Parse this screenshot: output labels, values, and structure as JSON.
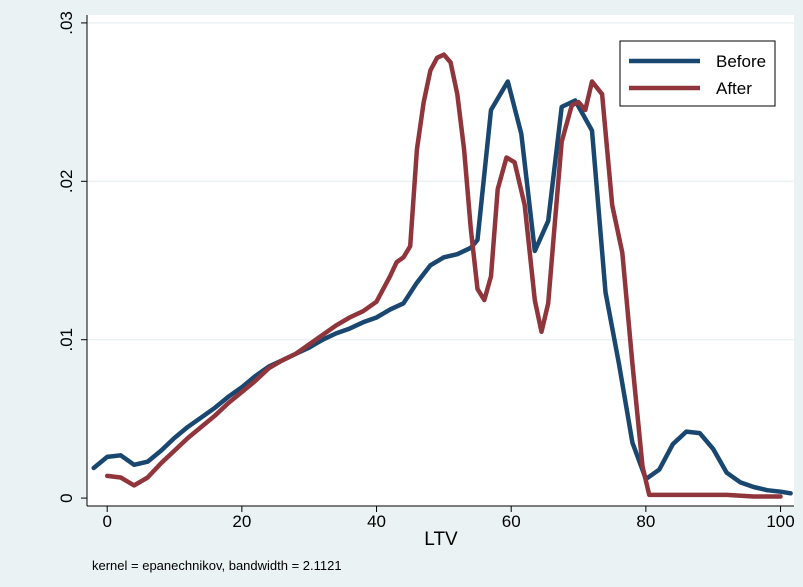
{
  "chart_data": {
    "type": "line",
    "title": "",
    "xlabel": "LTV",
    "ylabel": "",
    "xlim": [
      -3,
      102
    ],
    "ylim": [
      -0.0005,
      0.0305
    ],
    "x_ticks": [
      0,
      20,
      40,
      60,
      80,
      100
    ],
    "y_ticks": [
      0,
      0.01,
      0.02,
      0.03
    ],
    "y_tick_labels": [
      "0",
      ".01",
      ".02",
      ".03"
    ],
    "grid": "horizontal",
    "legend_position": "top-right",
    "note": "kernel = epanechnikov, bandwidth = 2.1121",
    "series": [
      {
        "name": "Before",
        "color": "#1a476f",
        "points": [
          [
            -2,
            0.0019
          ],
          [
            0,
            0.0026
          ],
          [
            2,
            0.0027
          ],
          [
            4,
            0.0021
          ],
          [
            6,
            0.0023
          ],
          [
            8,
            0.003
          ],
          [
            10,
            0.0038
          ],
          [
            12,
            0.0045
          ],
          [
            14,
            0.0051
          ],
          [
            16,
            0.0057
          ],
          [
            18,
            0.0064
          ],
          [
            20,
            0.007
          ],
          [
            22,
            0.0077
          ],
          [
            24,
            0.0083
          ],
          [
            26,
            0.0087
          ],
          [
            28,
            0.0091
          ],
          [
            30,
            0.0095
          ],
          [
            32,
            0.01
          ],
          [
            34,
            0.0104
          ],
          [
            36,
            0.0107
          ],
          [
            38,
            0.0111
          ],
          [
            40,
            0.0114
          ],
          [
            42,
            0.0119
          ],
          [
            44,
            0.0123
          ],
          [
            46,
            0.0136
          ],
          [
            48,
            0.0147
          ],
          [
            50,
            0.0152
          ],
          [
            52,
            0.0154
          ],
          [
            54,
            0.0158
          ],
          [
            55,
            0.0163
          ],
          [
            57,
            0.0245
          ],
          [
            59.5,
            0.0263
          ],
          [
            61.5,
            0.023
          ],
          [
            63.5,
            0.0156
          ],
          [
            65.5,
            0.0175
          ],
          [
            67.5,
            0.0247
          ],
          [
            69.5,
            0.0251
          ],
          [
            72,
            0.0232
          ],
          [
            74,
            0.013
          ],
          [
            76,
            0.0085
          ],
          [
            78,
            0.0035
          ],
          [
            80,
            0.0012
          ],
          [
            82,
            0.0018
          ],
          [
            84,
            0.0034
          ],
          [
            86,
            0.0042
          ],
          [
            88,
            0.0041
          ],
          [
            90,
            0.0031
          ],
          [
            92,
            0.0016
          ],
          [
            94,
            0.001
          ],
          [
            96,
            0.0007
          ],
          [
            98,
            0.0005
          ],
          [
            100,
            0.0004
          ],
          [
            101.5,
            0.0003
          ]
        ]
      },
      {
        "name": "After",
        "color": "#90353b",
        "points": [
          [
            0,
            0.0014
          ],
          [
            2,
            0.0013
          ],
          [
            4,
            0.0008
          ],
          [
            6,
            0.0013
          ],
          [
            8,
            0.0022
          ],
          [
            10,
            0.003
          ],
          [
            12,
            0.0038
          ],
          [
            14,
            0.0045
          ],
          [
            16,
            0.0052
          ],
          [
            18,
            0.006
          ],
          [
            20,
            0.0067
          ],
          [
            22,
            0.0074
          ],
          [
            24,
            0.0082
          ],
          [
            26,
            0.0087
          ],
          [
            28,
            0.0091
          ],
          [
            30,
            0.0097
          ],
          [
            32,
            0.0103
          ],
          [
            34,
            0.0109
          ],
          [
            36,
            0.0114
          ],
          [
            38,
            0.0118
          ],
          [
            40,
            0.0124
          ],
          [
            42,
            0.014
          ],
          [
            43,
            0.0149
          ],
          [
            44,
            0.0152
          ],
          [
            45,
            0.0159
          ],
          [
            46,
            0.022
          ],
          [
            47,
            0.025
          ],
          [
            48,
            0.027
          ],
          [
            49,
            0.0278
          ],
          [
            50,
            0.028
          ],
          [
            51,
            0.0275
          ],
          [
            52,
            0.0255
          ],
          [
            53,
            0.022
          ],
          [
            54,
            0.017
          ],
          [
            55,
            0.0132
          ],
          [
            56,
            0.0125
          ],
          [
            57,
            0.014
          ],
          [
            58,
            0.0195
          ],
          [
            59.3,
            0.0215
          ],
          [
            60.5,
            0.0212
          ],
          [
            62,
            0.0185
          ],
          [
            63.5,
            0.0125
          ],
          [
            64.5,
            0.0105
          ],
          [
            65.5,
            0.0123
          ],
          [
            66.5,
            0.0175
          ],
          [
            67.5,
            0.0225
          ],
          [
            69,
            0.0248
          ],
          [
            70,
            0.025
          ],
          [
            71,
            0.0245
          ],
          [
            72,
            0.0263
          ],
          [
            73.5,
            0.0255
          ],
          [
            75,
            0.0185
          ],
          [
            76.5,
            0.0155
          ],
          [
            78,
            0.0085
          ],
          [
            79.5,
            0.002
          ],
          [
            80.5,
            0.0002
          ],
          [
            84,
            0.0002
          ],
          [
            88,
            0.0002
          ],
          [
            92,
            0.0002
          ],
          [
            96,
            0.0001
          ],
          [
            100,
            0.0001
          ]
        ]
      }
    ]
  }
}
